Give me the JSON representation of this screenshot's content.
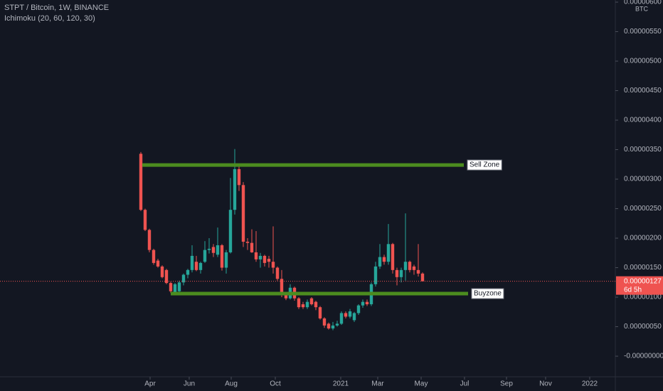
{
  "chart_data": {
    "type": "candlestick",
    "title": "STPT / Bitcoin, 1W, BINANCE",
    "subtitle": "Ichimoku (20, 60, 120, 30)",
    "currency": "BTC",
    "categories": [
      null,
      null,
      null,
      null,
      null,
      null,
      null,
      null,
      null,
      null,
      null,
      null,
      null,
      null,
      null,
      null,
      null,
      null,
      null,
      null,
      null,
      null,
      null,
      null,
      null,
      null,
      null,
      null,
      null,
      null,
      null,
      null,
      null,
      null,
      null,
      null,
      null,
      null,
      null,
      null,
      null,
      null,
      null,
      null,
      null,
      null,
      null,
      null,
      null,
      null,
      null,
      null,
      null,
      null,
      null,
      null,
      null,
      null,
      null,
      null,
      null,
      null,
      null,
      null,
      null,
      null,
      null
    ],
    "open": [
      3.43e-06,
      2.48e-06,
      2.14e-06,
      1.8e-06,
      1.62e-06,
      1.52e-06,
      1.46e-06,
      1.24e-06,
      1.08e-06,
      1.1e-06,
      1.25e-06,
      1.38e-06,
      1.46e-06,
      1.6e-06,
      1.46e-06,
      1.6e-06,
      1.8e-06,
      1.85e-06,
      1.72e-06,
      1.88e-06,
      1.5e-06,
      1.76e-06,
      2.48e-06,
      3.17e-06,
      2.9e-06,
      1.94e-06,
      1.92e-06,
      1.76e-06,
      1.64e-06,
      1.7e-06,
      1.65e-06,
      1.6e-06,
      1.5e-06,
      1.31e-06,
      1.04e-06,
      9.8e-07,
      1.16e-06,
      9.8e-07,
      8.8e-07,
      8.3e-07,
      9.8e-07,
      9.2e-07,
      8.3e-07,
      6.4e-07,
      5.5e-07,
      4.7e-07,
      5.2e-07,
      5.5e-07,
      7.3e-07,
      6.7e-07,
      6.1e-07,
      7.3e-07,
      8.6e-07,
      9.2e-07,
      8.8e-07,
      1.22e-06,
      1.52e-06,
      1.68e-06,
      1.6e-06,
      1.9e-06,
      1.46e-06,
      1.34e-06,
      1.46e-06,
      1.6e-06,
      1.52e-06,
      1.46e-06,
      1.4e-06
    ],
    "high": [
      3.46e-06,
      2.5e-06,
      2.16e-06,
      1.82e-06,
      1.65e-06,
      1.54e-06,
      1.48e-06,
      1.26e-06,
      1.24e-06,
      1.28e-06,
      1.4e-06,
      1.48e-06,
      1.88e-06,
      1.7e-06,
      1.6e-06,
      1.95e-06,
      2e-06,
      1.9e-06,
      2.18e-06,
      1.9e-06,
      1.8e-06,
      3.02e-06,
      3.51e-06,
      3.25e-06,
      2.95e-06,
      2e-06,
      2.15e-06,
      2.12e-06,
      1.75e-06,
      1.72e-06,
      1.7e-06,
      2.2e-06,
      1.52e-06,
      1.46e-06,
      1.08e-06,
      1.22e-06,
      1.18e-06,
      1e-06,
      9.2e-07,
      9.6e-07,
      1e-06,
      9.4e-07,
      8.5e-07,
      6.6e-07,
      5.7e-07,
      5.8e-07,
      6e-07,
      7.6e-07,
      7.6e-07,
      8e-07,
      7.5e-07,
      8.8e-07,
      9.6e-07,
      9.6e-07,
      1.25e-06,
      1.6e-06,
      1.9e-06,
      1.72e-06,
      2.24e-06,
      1.92e-06,
      1.5e-06,
      1.5e-06,
      2.42e-06,
      1.62e-06,
      1.55e-06,
      1.9e-06,
      1.42e-06
    ],
    "low": [
      2.46e-06,
      2.12e-06,
      1.76e-06,
      1.55e-06,
      1.5e-06,
      1.32e-06,
      1.22e-06,
      1.07e-06,
      1.04e-06,
      1.06e-06,
      1.2e-06,
      1.32e-06,
      1.42e-06,
      1.44e-06,
      1.4e-06,
      1.58e-06,
      1.74e-06,
      1.68e-06,
      1.68e-06,
      1.45e-06,
      1.4e-06,
      1.74e-06,
      2.4e-06,
      2.8e-06,
      1.85e-06,
      1.8e-06,
      1.75e-06,
      1.6e-06,
      1.5e-06,
      1.52e-06,
      1.5e-06,
      1.4e-06,
      1.28e-06,
      1e-06,
      9.5e-07,
      9.6e-07,
      9.4e-07,
      8e-07,
      8e-07,
      8e-07,
      8.6e-07,
      7.8e-07,
      6.2e-07,
      4.8e-07,
      4.5e-07,
      4.4e-07,
      5e-07,
      5.3e-07,
      6.4e-07,
      6.4e-07,
      5.8e-07,
      7e-07,
      8.2e-07,
      8.5e-07,
      8.5e-07,
      1.18e-06,
      1.48e-06,
      1.55e-06,
      1.55e-06,
      1.4e-06,
      1.2e-06,
      1.25e-06,
      1.28e-06,
      1.42e-06,
      1.38e-06,
      1.35e-06,
      1.27e-06
    ],
    "close": [
      2.48e-06,
      2.14e-06,
      1.8e-06,
      1.58e-06,
      1.52e-06,
      1.34e-06,
      1.24e-06,
      1.1e-06,
      1.22e-06,
      1.25e-06,
      1.38e-06,
      1.46e-06,
      1.7e-06,
      1.46e-06,
      1.58e-06,
      1.8e-06,
      1.82e-06,
      1.75e-06,
      1.88e-06,
      1.5e-06,
      1.76e-06,
      2.48e-06,
      3.17e-06,
      2.9e-06,
      1.94e-06,
      1.92e-06,
      1.76e-06,
      1.64e-06,
      1.7e-06,
      1.58e-06,
      1.6e-06,
      1.5e-06,
      1.31e-06,
      1.04e-06,
      9.8e-07,
      1.16e-06,
      9.8e-07,
      8.3e-07,
      8.3e-07,
      9.2e-07,
      8.8e-07,
      8.3e-07,
      6.4e-07,
      5.2e-07,
      4.7e-07,
      5.2e-07,
      5.5e-07,
      7.3e-07,
      6.7e-07,
      7.6e-07,
      7.3e-07,
      8.6e-07,
      9.2e-07,
      8.8e-07,
      1.22e-06,
      1.52e-06,
      1.68e-06,
      1.6e-06,
      1.9e-06,
      1.46e-06,
      1.34e-06,
      1.46e-06,
      1.6e-06,
      1.46e-06,
      1.46e-06,
      1.4e-06,
      1.27e-06
    ],
    "up_color": "#26a69a",
    "down_color": "#ef5350",
    "xlim": [
      -33,
      111.17
    ],
    "xticks": [
      {
        "value": 2.17,
        "label": "Apr"
      },
      {
        "value": 11.33,
        "label": "Jun"
      },
      {
        "value": 21.17,
        "label": "Aug"
      },
      {
        "value": 31.5,
        "label": "Oct"
      },
      {
        "value": 46.83,
        "label": "2021"
      },
      {
        "value": 55.5,
        "label": "Mar"
      },
      {
        "value": 65.67,
        "label": "May"
      },
      {
        "value": 75.83,
        "label": "Jul"
      },
      {
        "value": 85.67,
        "label": "Sep"
      },
      {
        "value": 94.83,
        "label": "Nov"
      },
      {
        "value": 105.17,
        "label": "2022"
      }
    ],
    "ylim": [
      -3.49e-07,
      6.036e-06
    ],
    "yticks": [
      {
        "value": 0,
        "label": "-0.00000000"
      },
      {
        "value": 5e-07,
        "label": "0.00000050"
      },
      {
        "value": 1e-06,
        "label": "0.00000100"
      },
      {
        "value": 1.5e-06,
        "label": "0.00000150"
      },
      {
        "value": 2e-06,
        "label": "0.00000200"
      },
      {
        "value": 2.5e-06,
        "label": "0.00000250"
      },
      {
        "value": 3e-06,
        "label": "0.00000300"
      },
      {
        "value": 3.5e-06,
        "label": "0.00000350"
      },
      {
        "value": 4e-06,
        "label": "0.00000400"
      },
      {
        "value": 4.5e-06,
        "label": "0.00000450"
      },
      {
        "value": 5e-06,
        "label": "0.00000500"
      },
      {
        "value": 5.5e-06,
        "label": "0.00000550"
      },
      {
        "value": 6e-06,
        "label": "0.00000600"
      }
    ],
    "zones": [
      {
        "label": "Sell Zone",
        "value": 3.24e-06,
        "color": "#4c8c1f"
      },
      {
        "label": "Buyzone",
        "value": 1.06e-06,
        "color": "#4c8c1f"
      }
    ],
    "last_price": {
      "value": 1.27e-06,
      "value_label": "0.00000127",
      "countdown": "6d 5h",
      "color": "#ef5350"
    }
  }
}
